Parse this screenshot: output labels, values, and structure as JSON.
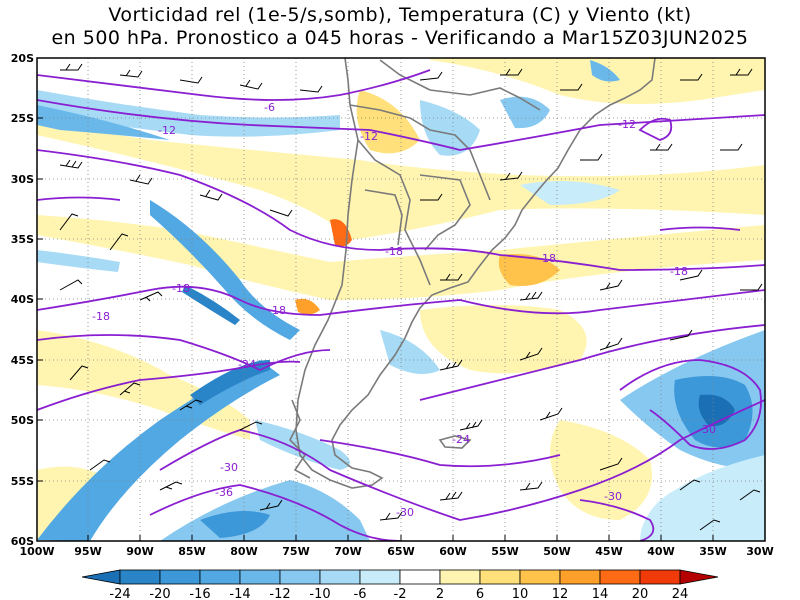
{
  "title": {
    "line1": "Vorticidad rel (1e-5/s,somb), Temperatura (C) y Viento (kt)",
    "line2": "en 500 hPa. Pronostico a 045 horas - Verificando a Mar15Z03JUN2025"
  },
  "map": {
    "lat_labels": [
      "20S",
      "25S",
      "30S",
      "35S",
      "40S",
      "45S",
      "50S",
      "55S",
      "60S"
    ],
    "lon_labels": [
      "100W",
      "95W",
      "90W",
      "85W",
      "80W",
      "75W",
      "70W",
      "65W",
      "60W",
      "55W",
      "50W",
      "45W",
      "40W",
      "35W",
      "30W"
    ],
    "lat_range": [
      -60,
      -20
    ],
    "lon_range": [
      -100,
      -30
    ],
    "grid": "dotted",
    "temperature_contours": [
      "-6",
      "-12",
      "-12",
      "-12",
      "-18",
      "-18",
      "-18",
      "-18",
      "-18",
      "-18",
      "-24",
      "-24",
      "-30",
      "-30",
      "-30",
      "-30",
      "-36"
    ],
    "contour_color": "#8a1fd1",
    "coastline_color": "#7a7a7a"
  },
  "colorbar": {
    "labels": [
      "-24",
      "-20",
      "-16",
      "-14",
      "-12",
      "-10",
      "-6",
      "-2",
      "2",
      "6",
      "10",
      "12",
      "14",
      "20",
      "24"
    ],
    "colors": [
      "#1a6fb5",
      "#2a85c8",
      "#3c98d8",
      "#52a8e2",
      "#6ab8ea",
      "#86c8f0",
      "#a6daf5",
      "#c8ecfa",
      "#ffffff",
      "#fff5b0",
      "#ffe07a",
      "#ffc24a",
      "#ffa02a",
      "#ff6a14",
      "#f03a0a",
      "#b40000"
    ]
  }
}
